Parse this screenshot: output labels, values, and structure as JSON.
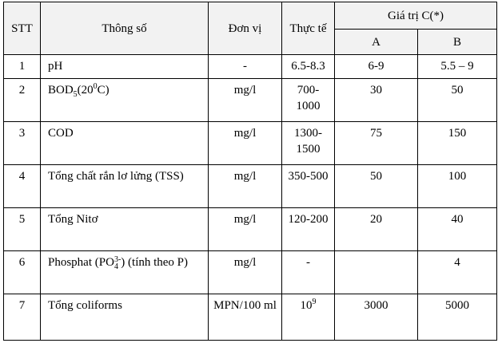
{
  "table": {
    "header": {
      "stt": "STT",
      "param": "Thông số",
      "unit": "Đơn vị",
      "actual": "Thực tế",
      "limit": "Giá trị C(*)",
      "a": "A",
      "b": "B"
    },
    "rows": [
      [
        "1",
        "pH",
        "-",
        "6.5-8.3",
        "6-9",
        "5.5 – 9"
      ],
      [
        "2",
        [
          {
            "t": "BOD"
          },
          {
            "sub": "5"
          },
          {
            "t": "(20"
          },
          {
            "sup": "0"
          },
          {
            "t": "C)"
          }
        ],
        "mg/l",
        "700-1000",
        "30",
        "50"
      ],
      [
        "3",
        "COD",
        "mg/l",
        "1300-1500",
        "75",
        "150"
      ],
      [
        "4",
        "Tổng chất rắn lơ lửng (TSS)",
        "mg/l",
        "350-500",
        "50",
        "100"
      ],
      [
        "5",
        "Tổng Nitơ",
        "mg/l",
        "120-200",
        "20",
        "40"
      ],
      [
        "6",
        [
          {
            "t": "Phosphat (PO"
          },
          {
            "sub": "4"
          },
          {
            "sup": "3-"
          },
          {
            "t": ") (tính theo P)"
          }
        ],
        "mg/l",
        "-",
        "",
        "4"
      ],
      [
        "7",
        "Tổng coliforms",
        "MPN/100 ml",
        [
          {
            "t": "10"
          },
          {
            "sup": "9"
          }
        ],
        "3000",
        "5000"
      ]
    ]
  }
}
